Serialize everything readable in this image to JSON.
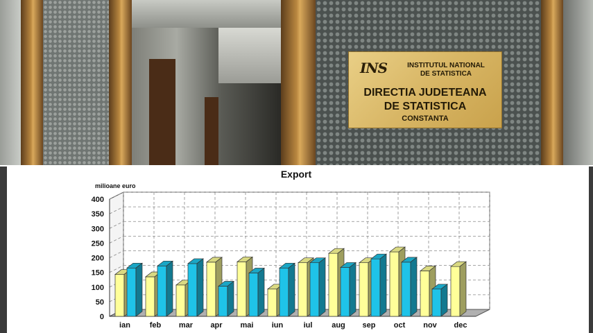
{
  "photo": {
    "plaque": {
      "logo": "INS",
      "line1": "INSTITUTUL NATIONAL",
      "line2": "DE STATISTICA",
      "line3": "DIRECTIA JUDETEANA",
      "line4": "DE STATISTICA",
      "line5": "CONSTANTA"
    }
  },
  "chart_data": {
    "type": "bar",
    "title": "Export",
    "ylabel": "milioane euro",
    "xlabel": "",
    "ylim": [
      0,
      400
    ],
    "yticks": [
      0,
      50,
      100,
      150,
      200,
      250,
      300,
      350,
      400
    ],
    "categories": [
      "ian",
      "feb",
      "mar",
      "apr",
      "mai",
      "iun",
      "iul",
      "aug",
      "sep",
      "oct",
      "nov",
      "dec"
    ],
    "grid": true,
    "three_d": true,
    "series": [
      {
        "color": "#ffff99",
        "values": [
          143,
          135,
          107,
          185,
          186,
          93,
          183,
          215,
          183,
          220,
          155,
          170
        ]
      },
      {
        "color": "#1fc3e8",
        "values": [
          165,
          172,
          180,
          103,
          148,
          165,
          183,
          167,
          196,
          185,
          93,
          null
        ]
      }
    ],
    "colors": {
      "front_grid": "#777777",
      "floor": "#b0b0b0"
    }
  }
}
